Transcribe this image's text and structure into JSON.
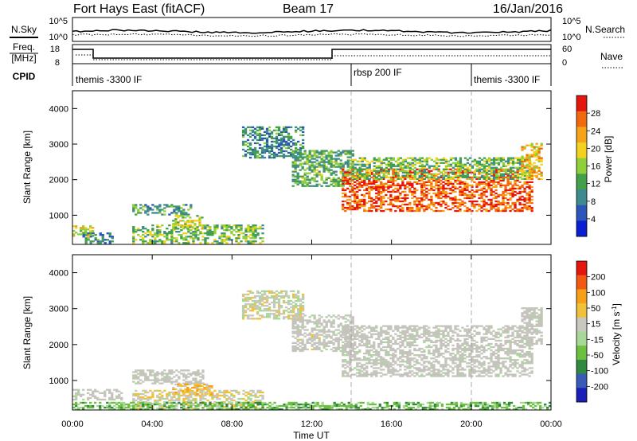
{
  "header": {
    "station": "Fort Hays East (fitACF)",
    "beam": "Beam 17",
    "date": "16/Jan/2016"
  },
  "top_panels": {
    "nsky_label": "N.Sky",
    "nsearch_label": "N.Search",
    "noise_ticks": [
      "10^5",
      "10^0"
    ],
    "freq_label": "Freq.",
    "freq_unit": "[MHz]",
    "freq_ticks": [
      "18",
      "8"
    ],
    "nave_label": "Nave",
    "nave_ticks": [
      "60",
      "0"
    ],
    "cpid_label": "CPID",
    "cpid_segments": [
      {
        "label": "themis -3300 IF",
        "start_hour": 0
      },
      {
        "label": "rbsp 200 IF",
        "start_hour": 14
      },
      {
        "label": "themis -3300 IF",
        "start_hour": 20
      }
    ]
  },
  "colors": {
    "power_scale": [
      "#0a1fd2",
      "#2a56b8",
      "#3f8a8f",
      "#43a04a",
      "#8fcf3a",
      "#f2d21e",
      "#f6a21a",
      "#f26a10",
      "#e3170e"
    ],
    "velocity_scale": [
      "#e3170e",
      "#f25a12",
      "#f6a01a",
      "#f0c23a",
      "#c8c8c0",
      "#a8d898",
      "#6cc040",
      "#2f8a40",
      "#3a5ab8",
      "#1a1fb8"
    ],
    "ground_scatter": "#c4c4bc"
  },
  "chart_data": [
    {
      "type": "heatmap",
      "name": "power",
      "ylabel": "Slant Range [km]",
      "xlabel": "Time UT",
      "xlim_hours": [
        0,
        24
      ],
      "ylim_km": [
        180,
        4500
      ],
      "x_ticks": [
        "00:00",
        "04:00",
        "08:00",
        "12:00",
        "16:00",
        "20:00",
        "00:00"
      ],
      "y_ticks": [
        1000,
        2000,
        3000,
        4000
      ],
      "colorbar_label": "Power [dB]",
      "colorbar_ticks": [
        "4",
        "8",
        "12",
        "16",
        "20",
        "24",
        "28"
      ],
      "regions": [
        {
          "t": [
            0,
            1.0
          ],
          "range_km": [
            400,
            700
          ],
          "level": 0.55
        },
        {
          "t": [
            0.5,
            2.0
          ],
          "range_km": [
            200,
            500
          ],
          "level": 0.3
        },
        {
          "t": [
            3,
            9.5
          ],
          "range_km": [
            200,
            700
          ],
          "level": 0.45
        },
        {
          "t": [
            3,
            6
          ],
          "range_km": [
            1000,
            1300
          ],
          "level": 0.35
        },
        {
          "t": [
            5,
            6.5
          ],
          "range_km": [
            600,
            1000
          ],
          "level": 0.55
        },
        {
          "t": [
            8.5,
            11.5
          ],
          "range_km": [
            2600,
            3500
          ],
          "level": 0.3
        },
        {
          "t": [
            11,
            14
          ],
          "range_km": [
            1800,
            2800
          ],
          "level": 0.4
        },
        {
          "t": [
            13.5,
            23
          ],
          "range_km": [
            1100,
            2300
          ],
          "level": 0.85
        },
        {
          "t": [
            14,
            23
          ],
          "range_km": [
            2000,
            2600
          ],
          "level": 0.45
        },
        {
          "t": [
            22.5,
            23.5
          ],
          "range_km": [
            2000,
            3000
          ],
          "level": 0.65
        }
      ]
    },
    {
      "type": "heatmap",
      "name": "velocity",
      "ylabel": "Slant Range [km]",
      "xlabel": "Time UT",
      "xlim_hours": [
        0,
        24
      ],
      "ylim_km": [
        180,
        4500
      ],
      "x_ticks": [
        "00:00",
        "04:00",
        "08:00",
        "12:00",
        "16:00",
        "20:00",
        "00:00"
      ],
      "y_ticks": [
        1000,
        2000,
        3000,
        4000
      ],
      "colorbar_label": "Velocity [m s^-1]",
      "colorbar_ticks": [
        "200",
        "100",
        "50",
        "15",
        "-15",
        "-50",
        "-100",
        "-200"
      ],
      "regions": [
        {
          "t": [
            0,
            2.5
          ],
          "range_km": [
            450,
            750
          ],
          "vel": 0
        },
        {
          "t": [
            3,
            9.5
          ],
          "range_km": [
            200,
            700
          ],
          "vel": 30
        },
        {
          "t": [
            3,
            6.5
          ],
          "range_km": [
            900,
            1300
          ],
          "vel": 0
        },
        {
          "t": [
            5,
            7
          ],
          "range_km": [
            600,
            900
          ],
          "vel": 60
        },
        {
          "t": [
            8.5,
            11.5
          ],
          "range_km": [
            2700,
            3500
          ],
          "vel": 20
        },
        {
          "t": [
            11,
            14
          ],
          "range_km": [
            1800,
            2800
          ],
          "vel": 10
        },
        {
          "t": [
            13.5,
            23
          ],
          "range_km": [
            1100,
            2500
          ],
          "vel": 0
        },
        {
          "t": [
            22.5,
            23.5
          ],
          "range_km": [
            2000,
            3000
          ],
          "vel": 0
        },
        {
          "t": [
            0,
            24
          ],
          "range_km": [
            180,
            400
          ],
          "vel": -60
        }
      ]
    }
  ]
}
